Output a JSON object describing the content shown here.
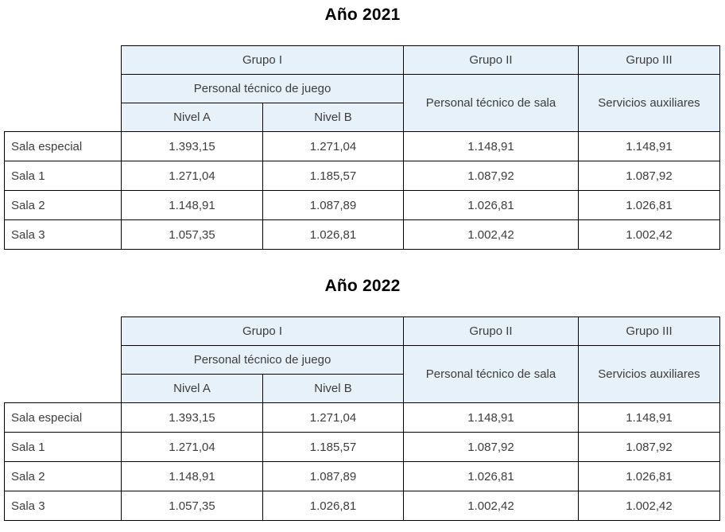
{
  "colors": {
    "header_fill": "#e7f1fa",
    "border": "#000000",
    "text": "#3d3d3d",
    "title": "#000000"
  },
  "tables": [
    {
      "title": "Año 2021",
      "header": {
        "group1": "Grupo I",
        "group2": "Grupo II",
        "group3": "Grupo III",
        "group1_sub": "Personal técnico de juego",
        "group2_sub": "Personal técnico de sala",
        "group3_sub": "Servicios auxiliares",
        "level_a": "Nivel A",
        "level_b": "Nivel B"
      },
      "rows": [
        {
          "label": "Sala especial",
          "values": [
            "1.393,15",
            "1.271,04",
            "1.148,91",
            "1.148,91"
          ]
        },
        {
          "label": "Sala 1",
          "values": [
            "1.271,04",
            "1.185,57",
            "1.087,92",
            "1.087,92"
          ]
        },
        {
          "label": "Sala 2",
          "values": [
            "1.148,91",
            "1.087,89",
            "1.026,81",
            "1.026,81"
          ]
        },
        {
          "label": "Sala 3",
          "values": [
            "1.057,35",
            "1.026,81",
            "1.002,42",
            "1.002,42"
          ]
        }
      ]
    },
    {
      "title": "Año 2022",
      "header": {
        "group1": "Grupo I",
        "group2": "Grupo II",
        "group3": "Grupo III",
        "group1_sub": "Personal técnico de juego",
        "group2_sub": "Personal técnico de sala",
        "group3_sub": "Servicios auxiliares",
        "level_a": "Nivel A",
        "level_b": "Nivel B"
      },
      "rows": [
        {
          "label": "Sala especial",
          "values": [
            "1.393,15",
            "1.271,04",
            "1.148,91",
            "1.148,91"
          ]
        },
        {
          "label": "Sala 1",
          "values": [
            "1.271,04",
            "1.185,57",
            "1.087,92",
            "1.087,92"
          ]
        },
        {
          "label": "Sala 2",
          "values": [
            "1.148,91",
            "1.087,89",
            "1.026,81",
            "1.026,81"
          ]
        },
        {
          "label": "Sala 3",
          "values": [
            "1.057,35",
            "1.026,81",
            "1.002,42",
            "1.002,42"
          ]
        }
      ]
    }
  ]
}
